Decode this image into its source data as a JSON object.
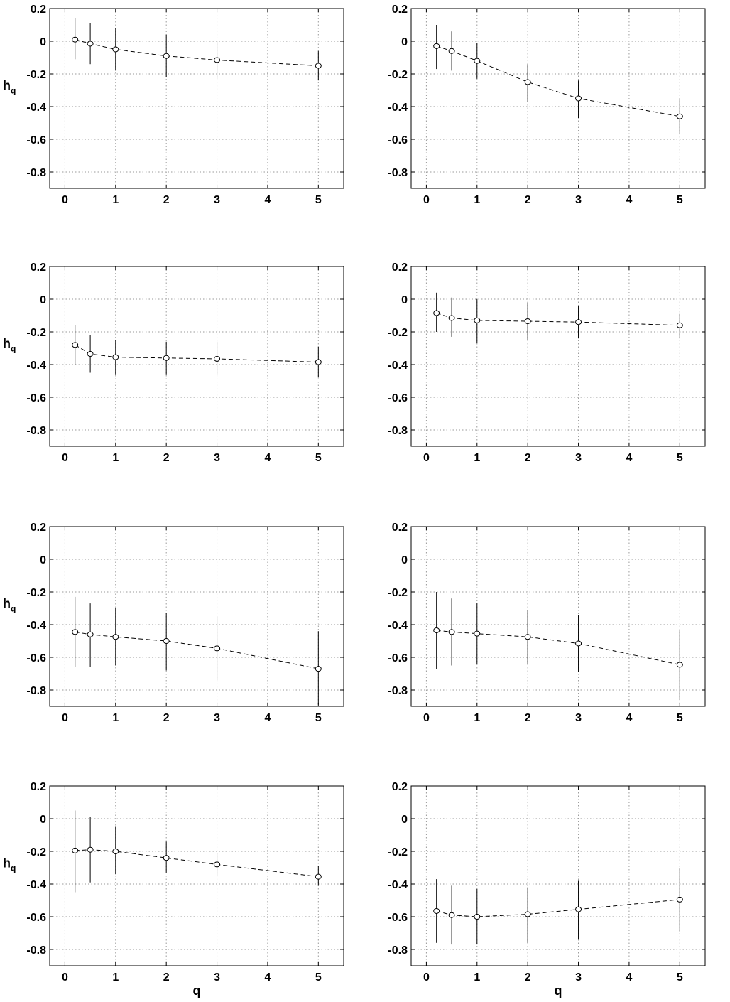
{
  "figure": {
    "ylabel_main": "h",
    "ylabel_sub": "q",
    "xlabel": "q"
  },
  "chart_data": [
    {
      "type": "scatter",
      "panel": 1,
      "x": [
        0.2,
        0.5,
        1,
        2,
        3,
        5
      ],
      "y": [
        0.01,
        -0.015,
        -0.05,
        -0.09,
        -0.115,
        -0.15
      ],
      "err_low": [
        -0.11,
        -0.14,
        -0.18,
        -0.22,
        -0.23,
        -0.24
      ],
      "err_high": [
        0.14,
        0.11,
        0.08,
        0.04,
        0.0,
        -0.06
      ],
      "xlim": [
        -0.3,
        5.5
      ],
      "ylim": [
        -0.9,
        0.2
      ],
      "xticks": [
        0,
        1,
        2,
        3,
        4,
        5
      ],
      "yticks": [
        0.2,
        0,
        -0.2,
        -0.4,
        -0.6,
        -0.8
      ],
      "grid": true,
      "ylabel": "h_q",
      "xlabel": ""
    },
    {
      "type": "scatter",
      "panel": 2,
      "x": [
        0.2,
        0.5,
        1,
        2,
        3,
        5
      ],
      "y": [
        -0.03,
        -0.06,
        -0.12,
        -0.25,
        -0.35,
        -0.46
      ],
      "err_low": [
        -0.17,
        -0.18,
        -0.23,
        -0.37,
        -0.47,
        -0.57
      ],
      "err_high": [
        0.1,
        0.06,
        -0.01,
        -0.14,
        -0.24,
        -0.35
      ],
      "xlim": [
        -0.3,
        5.5
      ],
      "ylim": [
        -0.9,
        0.2
      ],
      "xticks": [
        0,
        1,
        2,
        3,
        4,
        5
      ],
      "yticks": [
        0.2,
        0,
        -0.2,
        -0.4,
        -0.6,
        -0.8
      ],
      "grid": true,
      "ylabel": "",
      "xlabel": ""
    },
    {
      "type": "scatter",
      "panel": 3,
      "x": [
        0.2,
        0.5,
        1,
        2,
        3,
        5
      ],
      "y": [
        -0.28,
        -0.335,
        -0.355,
        -0.36,
        -0.365,
        -0.385
      ],
      "err_low": [
        -0.4,
        -0.45,
        -0.46,
        -0.46,
        -0.46,
        -0.48
      ],
      "err_high": [
        -0.16,
        -0.22,
        -0.25,
        -0.26,
        -0.26,
        -0.29
      ],
      "xlim": [
        -0.3,
        5.5
      ],
      "ylim": [
        -0.9,
        0.2
      ],
      "xticks": [
        0,
        1,
        2,
        3,
        4,
        5
      ],
      "yticks": [
        0.2,
        0,
        -0.2,
        -0.4,
        -0.6,
        -0.8
      ],
      "grid": true,
      "ylabel": "h_q",
      "xlabel": ""
    },
    {
      "type": "scatter",
      "panel": 4,
      "x": [
        0.2,
        0.5,
        1,
        2,
        3,
        5
      ],
      "y": [
        -0.085,
        -0.115,
        -0.13,
        -0.135,
        -0.14,
        -0.16
      ],
      "err_low": [
        -0.2,
        -0.23,
        -0.27,
        -0.25,
        -0.24,
        -0.24
      ],
      "err_high": [
        0.04,
        0.01,
        0.0,
        -0.02,
        -0.04,
        -0.09
      ],
      "xlim": [
        -0.3,
        5.5
      ],
      "ylim": [
        -0.9,
        0.2
      ],
      "xticks": [
        0,
        1,
        2,
        3,
        4,
        5
      ],
      "yticks": [
        0.2,
        0,
        -0.2,
        -0.4,
        -0.6,
        -0.8
      ],
      "grid": true,
      "ylabel": "",
      "xlabel": ""
    },
    {
      "type": "scatter",
      "panel": 5,
      "x": [
        0.2,
        0.5,
        1,
        2,
        3,
        5
      ],
      "y": [
        -0.445,
        -0.46,
        -0.475,
        -0.5,
        -0.545,
        -0.67
      ],
      "err_low": [
        -0.66,
        -0.66,
        -0.65,
        -0.68,
        -0.74,
        -0.89
      ],
      "err_high": [
        -0.23,
        -0.27,
        -0.3,
        -0.33,
        -0.35,
        -0.44
      ],
      "xlim": [
        -0.3,
        5.5
      ],
      "ylim": [
        -0.9,
        0.2
      ],
      "xticks": [
        0,
        1,
        2,
        3,
        4,
        5
      ],
      "yticks": [
        0.2,
        0,
        -0.2,
        -0.4,
        -0.6,
        -0.8
      ],
      "grid": true,
      "ylabel": "h_q",
      "xlabel": ""
    },
    {
      "type": "scatter",
      "panel": 6,
      "x": [
        0.2,
        0.5,
        1,
        2,
        3,
        5
      ],
      "y": [
        -0.435,
        -0.445,
        -0.455,
        -0.475,
        -0.515,
        -0.645
      ],
      "err_low": [
        -0.67,
        -0.65,
        -0.64,
        -0.64,
        -0.69,
        -0.86
      ],
      "err_high": [
        -0.2,
        -0.24,
        -0.27,
        -0.31,
        -0.34,
        -0.43
      ],
      "xlim": [
        -0.3,
        5.5
      ],
      "ylim": [
        -0.9,
        0.2
      ],
      "xticks": [
        0,
        1,
        2,
        3,
        4,
        5
      ],
      "yticks": [
        0.2,
        0,
        -0.2,
        -0.4,
        -0.6,
        -0.8
      ],
      "grid": true,
      "ylabel": "",
      "xlabel": ""
    },
    {
      "type": "scatter",
      "panel": 7,
      "x": [
        0.2,
        0.5,
        1,
        2,
        3,
        5
      ],
      "y": [
        -0.195,
        -0.19,
        -0.2,
        -0.24,
        -0.28,
        -0.355
      ],
      "err_low": [
        -0.45,
        -0.39,
        -0.34,
        -0.33,
        -0.35,
        -0.41
      ],
      "err_high": [
        0.05,
        0.01,
        -0.05,
        -0.14,
        -0.21,
        -0.29
      ],
      "xlim": [
        -0.3,
        5.5
      ],
      "ylim": [
        -0.9,
        0.2
      ],
      "xticks": [
        0,
        1,
        2,
        3,
        4,
        5
      ],
      "yticks": [
        0.2,
        0,
        -0.2,
        -0.4,
        -0.6,
        -0.8
      ],
      "grid": true,
      "ylabel": "h_q",
      "xlabel": "q"
    },
    {
      "type": "scatter",
      "panel": 8,
      "x": [
        0.2,
        0.5,
        1,
        2,
        3,
        5
      ],
      "y": [
        -0.565,
        -0.59,
        -0.6,
        -0.585,
        -0.555,
        -0.495
      ],
      "err_low": [
        -0.76,
        -0.77,
        -0.77,
        -0.76,
        -0.74,
        -0.69
      ],
      "err_high": [
        -0.37,
        -0.41,
        -0.43,
        -0.42,
        -0.38,
        -0.3
      ],
      "xlim": [
        -0.3,
        5.5
      ],
      "ylim": [
        -0.9,
        0.2
      ],
      "xticks": [
        0,
        1,
        2,
        3,
        4,
        5
      ],
      "yticks": [
        0.2,
        0,
        -0.2,
        -0.4,
        -0.6,
        -0.8
      ],
      "grid": true,
      "ylabel": "",
      "xlabel": "q"
    }
  ]
}
